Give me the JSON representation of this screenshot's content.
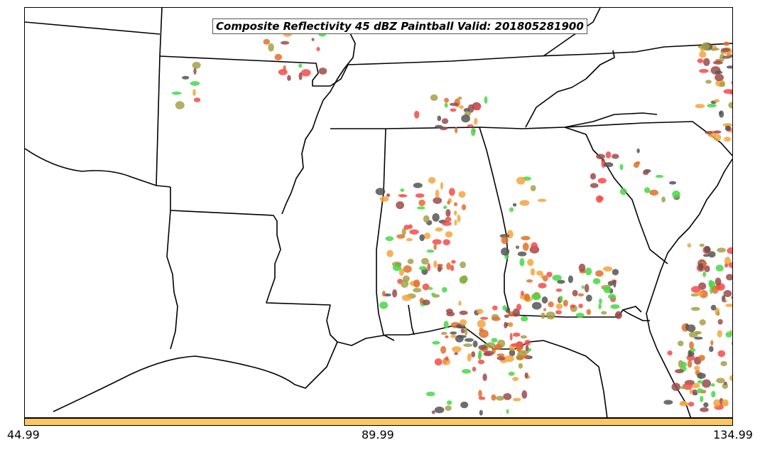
{
  "map": {
    "title": "Composite Reflectivity 45 dBZ Paintball Valid: 201805281900",
    "background": "#ffffff",
    "boundary_color": "#000000"
  },
  "colorbar": {
    "fill_color": "#fbc664",
    "tick_labels": [
      "44.99",
      "89.99",
      "134.99"
    ]
  },
  "paint_colors": {
    "red": "#f44a4a",
    "green": "#45d845",
    "orange": "#f5a43c",
    "olive": "#a4a046",
    "gray": "#555555",
    "brown": "#9b4a4a",
    "dark_orange": "#e0702a"
  }
}
